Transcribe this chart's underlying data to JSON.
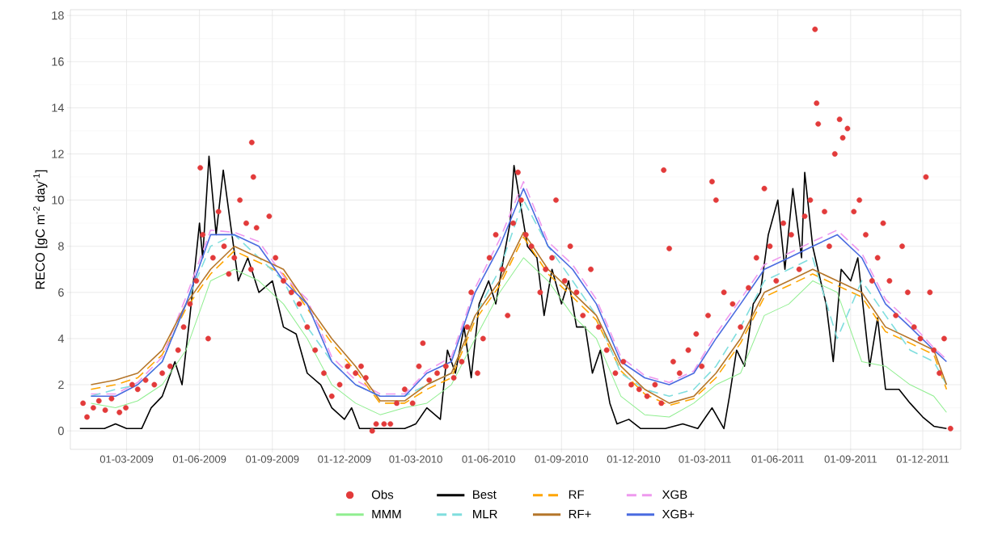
{
  "chart_data": {
    "type": "line",
    "ylabel": "RECO [gC m$^{-2}$ day$^{-1}$]",
    "xlim": [
      "2008-12-20",
      "2012-01-18"
    ],
    "xticks": [
      {
        "value": "2009-03-01",
        "label": "01-03-2009"
      },
      {
        "value": "2009-06-01",
        "label": "01-06-2009"
      },
      {
        "value": "2009-09-01",
        "label": "01-09-2009"
      },
      {
        "value": "2009-12-01",
        "label": "01-12-2009"
      },
      {
        "value": "2010-03-01",
        "label": "01-03-2010"
      },
      {
        "value": "2010-06-01",
        "label": "01-06-2010"
      },
      {
        "value": "2010-09-01",
        "label": "01-09-2010"
      },
      {
        "value": "2010-12-01",
        "label": "01-12-2010"
      },
      {
        "value": "2011-03-01",
        "label": "01-03-2011"
      },
      {
        "value": "2011-06-01",
        "label": "01-06-2011"
      },
      {
        "value": "2011-09-01",
        "label": "01-09-2011"
      },
      {
        "value": "2011-12-01",
        "label": "01-12-2011"
      }
    ],
    "ylim": [
      -0.8,
      18.25
    ],
    "yticks": [
      0,
      2,
      4,
      6,
      8,
      10,
      12,
      14,
      16,
      18
    ],
    "grid": true,
    "legend": "bottom",
    "x": [
      "2009-01-15",
      "2009-02-15",
      "2009-03-15",
      "2009-04-15",
      "2009-05-15",
      "2009-06-15",
      "2009-07-15",
      "2009-08-15",
      "2009-09-15",
      "2009-10-15",
      "2009-11-15",
      "2009-12-15",
      "2010-01-15",
      "2010-02-15",
      "2010-03-15",
      "2010-04-15",
      "2010-05-15",
      "2010-06-15",
      "2010-07-15",
      "2010-08-15",
      "2010-09-15",
      "2010-10-15",
      "2010-11-15",
      "2010-12-15",
      "2011-01-15",
      "2011-02-15",
      "2011-03-15",
      "2011-04-15",
      "2011-05-15",
      "2011-06-15",
      "2011-07-15",
      "2011-08-15",
      "2011-09-15",
      "2011-10-15",
      "2011-11-15",
      "2011-12-15",
      "2011-12-31"
    ],
    "series": [
      {
        "name": "Obs",
        "type": "scatter",
        "color": "#e23a3a",
        "x": [
          "2009-01-05",
          "2009-01-10",
          "2009-01-18",
          "2009-01-25",
          "2009-02-02",
          "2009-02-10",
          "2009-02-20",
          "2009-02-28",
          "2009-03-08",
          "2009-03-15",
          "2009-03-25",
          "2009-04-05",
          "2009-04-15",
          "2009-04-25",
          "2009-05-05",
          "2009-05-12",
          "2009-05-20",
          "2009-05-28",
          "2009-06-02",
          "2009-06-05",
          "2009-06-12",
          "2009-06-18",
          "2009-06-25",
          "2009-07-02",
          "2009-07-08",
          "2009-07-15",
          "2009-07-22",
          "2009-07-30",
          "2009-08-05",
          "2009-08-06",
          "2009-08-08",
          "2009-08-12",
          "2009-08-28",
          "2009-09-05",
          "2009-09-15",
          "2009-09-25",
          "2009-10-05",
          "2009-10-15",
          "2009-10-25",
          "2009-11-05",
          "2009-11-15",
          "2009-11-25",
          "2009-12-05",
          "2009-12-15",
          "2009-12-22",
          "2009-12-28",
          "2010-01-05",
          "2010-01-10",
          "2010-01-20",
          "2010-01-28",
          "2010-02-05",
          "2010-02-15",
          "2010-02-25",
          "2010-03-05",
          "2010-03-10",
          "2010-03-18",
          "2010-03-28",
          "2010-04-08",
          "2010-04-18",
          "2010-04-28",
          "2010-05-05",
          "2010-05-10",
          "2010-05-18",
          "2010-05-25",
          "2010-06-02",
          "2010-06-10",
          "2010-06-18",
          "2010-06-25",
          "2010-07-02",
          "2010-07-08",
          "2010-07-12",
          "2010-07-18",
          "2010-07-25",
          "2010-08-05",
          "2010-08-12",
          "2010-08-20",
          "2010-08-25",
          "2010-09-05",
          "2010-09-12",
          "2010-09-20",
          "2010-09-28",
          "2010-10-08",
          "2010-10-18",
          "2010-10-28",
          "2010-11-08",
          "2010-11-18",
          "2010-11-28",
          "2010-12-08",
          "2010-12-18",
          "2010-12-28",
          "2011-01-05",
          "2011-01-08",
          "2011-01-15",
          "2011-01-20",
          "2011-01-28",
          "2011-02-08",
          "2011-02-18",
          "2011-02-25",
          "2011-03-05",
          "2011-03-10",
          "2011-03-15",
          "2011-03-25",
          "2011-04-05",
          "2011-04-15",
          "2011-04-25",
          "2011-05-05",
          "2011-05-15",
          "2011-05-22",
          "2011-05-30",
          "2011-06-08",
          "2011-06-18",
          "2011-06-28",
          "2011-07-05",
          "2011-07-12",
          "2011-07-18",
          "2011-07-20",
          "2011-07-22",
          "2011-07-30",
          "2011-08-05",
          "2011-08-12",
          "2011-08-18",
          "2011-08-22",
          "2011-08-28",
          "2011-09-05",
          "2011-09-12",
          "2011-09-20",
          "2011-09-28",
          "2011-10-05",
          "2011-10-12",
          "2011-10-20",
          "2011-10-28",
          "2011-11-05",
          "2011-11-12",
          "2011-11-20",
          "2011-11-28",
          "2011-12-05",
          "2011-12-10",
          "2011-12-15",
          "2011-12-22",
          "2011-12-28",
          "2012-01-05"
        ],
        "values": [
          1.2,
          0.6,
          1.0,
          1.3,
          0.9,
          1.4,
          0.8,
          1.0,
          2.0,
          1.8,
          2.2,
          2.0,
          2.5,
          2.8,
          3.5,
          4.5,
          5.5,
          6.5,
          11.4,
          8.5,
          4.0,
          7.5,
          9.5,
          8.0,
          6.8,
          7.5,
          10.0,
          9.0,
          7.0,
          12.5,
          11.0,
          8.8,
          9.3,
          7.5,
          6.5,
          6.0,
          5.5,
          4.5,
          3.5,
          2.5,
          1.5,
          2.0,
          2.8,
          2.5,
          2.8,
          2.3,
          0.0,
          0.3,
          0.3,
          0.3,
          1.2,
          1.8,
          1.2,
          2.8,
          3.8,
          2.2,
          2.5,
          2.8,
          2.3,
          3.0,
          4.5,
          6.0,
          2.5,
          4.0,
          7.5,
          8.5,
          7.0,
          5.0,
          9.0,
          11.2,
          10.0,
          8.5,
          8.0,
          6.0,
          7.0,
          7.5,
          10.0,
          6.5,
          8.0,
          6.0,
          5.0,
          7.0,
          4.5,
          3.5,
          2.5,
          3.0,
          2.0,
          1.8,
          1.5,
          2.0,
          1.2,
          11.3,
          7.9,
          3.0,
          2.5,
          3.5,
          4.2,
          2.8,
          5.0,
          10.8,
          10.0,
          6.0,
          5.5,
          4.5,
          6.2,
          7.5,
          10.5,
          8.0,
          6.5,
          9.0,
          8.5,
          7.0,
          9.3,
          10.0,
          17.4,
          14.2,
          13.3,
          9.5,
          8.0,
          12.0,
          13.5,
          12.7,
          13.1,
          9.5,
          10.0,
          8.5,
          6.5,
          7.5,
          9.0,
          6.5,
          5.0,
          8.0,
          6.0,
          4.5,
          4.0,
          11.0,
          6.0,
          3.5,
          2.5,
          4.0,
          0.1
        ]
      },
      {
        "name": "Best",
        "color": "#000000",
        "x": [
          "2009-01-01",
          "2009-02-01",
          "2009-02-15",
          "2009-03-01",
          "2009-03-20",
          "2009-04-01",
          "2009-04-15",
          "2009-05-01",
          "2009-05-10",
          "2009-05-20",
          "2009-06-01",
          "2009-06-05",
          "2009-06-13",
          "2009-06-22",
          "2009-07-01",
          "2009-07-10",
          "2009-07-20",
          "2009-08-01",
          "2009-08-15",
          "2009-09-01",
          "2009-09-15",
          "2009-10-01",
          "2009-10-15",
          "2009-11-01",
          "2009-11-15",
          "2009-12-01",
          "2009-12-10",
          "2009-12-20",
          "2010-01-15",
          "2010-02-15",
          "2010-03-01",
          "2010-03-15",
          "2010-04-01",
          "2010-04-10",
          "2010-04-20",
          "2010-05-01",
          "2010-05-10",
          "2010-05-20",
          "2010-06-01",
          "2010-06-10",
          "2010-06-20",
          "2010-06-28",
          "2010-07-03",
          "2010-07-20",
          "2010-08-01",
          "2010-08-10",
          "2010-08-20",
          "2010-09-01",
          "2010-09-10",
          "2010-09-20",
          "2010-10-01",
          "2010-10-10",
          "2010-10-20",
          "2010-11-01",
          "2010-11-10",
          "2010-11-25",
          "2010-12-10",
          "2011-01-10",
          "2011-02-01",
          "2011-02-20",
          "2011-03-10",
          "2011-03-25",
          "2011-04-01",
          "2011-04-10",
          "2011-04-20",
          "2011-05-01",
          "2011-05-10",
          "2011-05-20",
          "2011-06-01",
          "2011-06-10",
          "2011-06-20",
          "2011-07-01",
          "2011-07-05",
          "2011-07-15",
          "2011-07-25",
          "2011-08-01",
          "2011-08-10",
          "2011-08-20",
          "2011-09-01",
          "2011-09-10",
          "2011-09-25",
          "2011-10-05",
          "2011-10-15",
          "2011-11-01",
          "2011-11-15",
          "2011-12-01",
          "2011-12-15",
          "2011-12-31"
        ],
        "values": [
          0.1,
          0.1,
          0.3,
          0.1,
          0.1,
          1.0,
          1.5,
          3.0,
          2.0,
          5.0,
          9.0,
          7.5,
          11.9,
          8.5,
          11.3,
          9.0,
          6.5,
          7.5,
          6.0,
          6.5,
          4.5,
          4.2,
          2.5,
          2.0,
          1.0,
          0.5,
          1.0,
          0.1,
          0.1,
          0.1,
          0.3,
          1.0,
          0.5,
          3.5,
          2.5,
          4.5,
          2.3,
          5.5,
          6.5,
          5.5,
          7.5,
          9.0,
          11.5,
          8.0,
          7.5,
          5.0,
          7.0,
          5.5,
          6.5,
          4.5,
          4.5,
          2.5,
          3.5,
          1.2,
          0.3,
          0.5,
          0.1,
          0.1,
          0.3,
          0.1,
          1.0,
          0.1,
          1.5,
          3.5,
          2.8,
          5.5,
          6.0,
          8.5,
          10.0,
          7.0,
          10.5,
          7.5,
          11.2,
          8.0,
          6.5,
          5.5,
          3.0,
          7.0,
          6.5,
          7.5,
          2.8,
          4.9,
          1.8,
          1.8,
          1.2,
          0.6,
          0.2,
          0.1
        ]
      },
      {
        "name": "RF",
        "line_style": "dashed",
        "color": "#ffa500",
        "values": [
          1.8,
          2.0,
          2.3,
          3.3,
          5.3,
          6.8,
          7.8,
          7.3,
          6.8,
          5.3,
          3.8,
          2.6,
          1.2,
          1.2,
          1.8,
          2.3,
          4.8,
          6.3,
          8.4,
          6.8,
          5.8,
          4.8,
          2.6,
          1.6,
          1.1,
          1.4,
          2.3,
          3.8,
          5.8,
          6.3,
          6.8,
          6.3,
          5.8,
          4.3,
          3.8,
          3.3,
          1.8
        ]
      },
      {
        "name": "XGB",
        "line_style": "dashed",
        "color": "#ee99ee",
        "values": [
          1.6,
          1.6,
          2.1,
          3.2,
          5.8,
          8.7,
          8.6,
          8.2,
          6.7,
          5.7,
          3.2,
          2.2,
          1.6,
          1.6,
          2.6,
          3.2,
          6.2,
          8.3,
          10.8,
          8.2,
          7.2,
          5.7,
          3.2,
          2.4,
          2.1,
          2.6,
          4.2,
          5.7,
          7.2,
          7.7,
          8.2,
          8.7,
          7.7,
          5.7,
          4.7,
          3.6,
          3.1
        ]
      },
      {
        "name": "MMM",
        "color": "#90ee90",
        "values": [
          1.2,
          1.0,
          1.3,
          2.0,
          3.5,
          6.5,
          7.0,
          6.5,
          5.5,
          4.0,
          2.0,
          1.2,
          0.7,
          1.0,
          1.2,
          2.0,
          4.0,
          6.0,
          7.5,
          6.5,
          5.0,
          4.0,
          1.5,
          0.7,
          0.6,
          1.2,
          2.0,
          2.5,
          5.0,
          5.5,
          6.5,
          6.0,
          3.0,
          2.8,
          2.0,
          1.5,
          0.8
        ]
      },
      {
        "name": "MLR",
        "line_style": "dashed",
        "color": "#80dede",
        "values": [
          1.5,
          1.8,
          2.0,
          3.0,
          5.5,
          8.0,
          8.5,
          7.5,
          6.5,
          4.5,
          3.0,
          2.0,
          1.5,
          1.5,
          2.0,
          2.5,
          5.0,
          7.0,
          10.0,
          8.0,
          6.5,
          5.0,
          2.5,
          1.8,
          1.5,
          1.8,
          2.8,
          4.5,
          6.5,
          7.0,
          7.5,
          4.0,
          6.5,
          5.0,
          3.5,
          3.0,
          2.0
        ]
      },
      {
        "name": "RF+",
        "color": "#b5762a",
        "values": [
          2.0,
          2.2,
          2.5,
          3.5,
          5.5,
          7.0,
          8.0,
          7.5,
          7.0,
          5.5,
          4.0,
          2.8,
          1.3,
          1.3,
          2.0,
          2.5,
          5.0,
          6.5,
          8.6,
          7.0,
          6.0,
          5.0,
          2.8,
          1.8,
          1.2,
          1.5,
          2.5,
          4.0,
          6.0,
          6.5,
          7.0,
          6.5,
          6.0,
          4.5,
          4.0,
          3.5,
          2.0
        ]
      },
      {
        "name": "XGB+",
        "color": "#4a6be0",
        "values": [
          1.5,
          1.5,
          2.0,
          3.0,
          5.5,
          8.5,
          8.5,
          8.0,
          6.5,
          5.5,
          3.0,
          2.0,
          1.5,
          1.5,
          2.5,
          3.0,
          6.0,
          8.0,
          10.5,
          8.0,
          7.0,
          5.5,
          3.0,
          2.3,
          2.0,
          2.5,
          4.0,
          5.5,
          7.0,
          7.5,
          8.0,
          8.5,
          7.5,
          5.5,
          4.5,
          3.5,
          3.0
        ]
      }
    ]
  }
}
